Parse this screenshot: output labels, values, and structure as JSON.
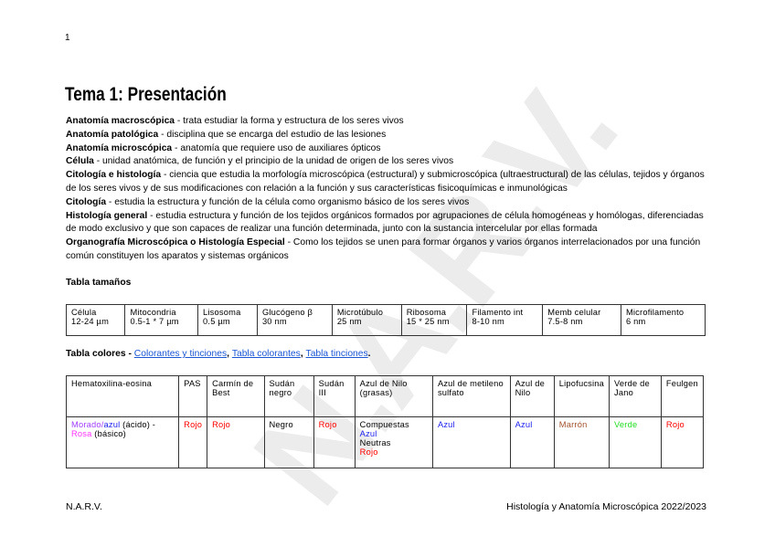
{
  "page_number": "1",
  "title": "Tema 1: Presentación",
  "definitions": [
    {
      "term": "Anatomía macroscópica",
      "text": " - trata estudiar la forma y estructura de los seres vivos"
    },
    {
      "term": "Anatomía patológica",
      "text": " - disciplina que se encarga del estudio de las lesiones"
    },
    {
      "term": "Anatomía microscópica",
      "text": " - anatomía que requiere uso de auxiliares ópticos"
    },
    {
      "term": "Célula",
      "text": " - unidad anatómica, de función y el principio de la unidad de origen de los seres vivos"
    },
    {
      "term": "Citología e histología",
      "text": " - ciencia que estudia la morfología microscópica (estructural) y submicroscópica (ultraestructural) de las células, tejidos y órganos de los seres vivos y de sus modificaciones con relación a la función y sus características fisicoquímicas e inmunológicas"
    },
    {
      "term": "Citología",
      "text": " - estudia la estructura y función de la célula como organismo básico de los seres vivos"
    },
    {
      "term": "Histología general",
      "text": " - estudia estructura y función de los tejidos orgánicos formados por agrupaciones de célula homogéneas y homólogas, diferenciadas de modo exclusivo y que son capaces de realizar una función determinada, junto con la sustancia intercelular por ellas formada"
    },
    {
      "term": "Organografía Microscópica o Histología Especial",
      "text": " - Como los tejidos se unen para formar órganos y varios órganos interrelacionados por una función común constituyen los aparatos y sistemas orgánicos"
    }
  ],
  "sizes_table": {
    "label": "Tabla tamaños",
    "cells": [
      {
        "name": "Célula",
        "value": "12-24 µm"
      },
      {
        "name": "Mitocondria",
        "value": "0.5-1 * 7 µm"
      },
      {
        "name": "Lisosoma",
        "value": "0.5 µm"
      },
      {
        "name": "Glucógeno β",
        "value": "30 nm"
      },
      {
        "name": "Microtúbulo",
        "value": "25 nm"
      },
      {
        "name": "Ribosoma",
        "value": "15 * 25 nm"
      },
      {
        "name": "Filamento int",
        "value": "8-10 nm"
      },
      {
        "name": "Memb celular",
        "value": "7.5-8 nm"
      },
      {
        "name": "Microfilamento",
        "value": "6 nm"
      }
    ]
  },
  "colors_table": {
    "label": "Tabla colores",
    "sep": " - ",
    "links": [
      "Colorantes y tinciones",
      "Tabla colorantes",
      "Tabla tinciones"
    ],
    "headers": [
      "Hematoxilina-eosina",
      "PAS",
      "Carmín de Best",
      "Sudán negro",
      "Sudán III",
      "Azul de Nilo (grasas)",
      "Azul de metileno sulfato",
      "Azul de Nilo",
      "Lipofucsina",
      "Verde de Jano",
      "Feulgen"
    ],
    "he": {
      "morado": "Morado",
      "slash": "/",
      "azul": "azul",
      "acido": " (ácido) - ",
      "rosa": "Rosa",
      "basico": " (básico)"
    },
    "nilo_grasas": {
      "compuestas": "Compuestas ",
      "azul": "Azul",
      "neutras": "Neutras",
      "rojo": "Rojo"
    },
    "values": [
      "Rojo",
      "Rojo",
      "Negro",
      "Rojo",
      "Azul",
      "Azul",
      "Marrón",
      "Verde",
      "Rojo"
    ],
    "colors": {
      "morado": "#a040ff",
      "azul": "#2222ee",
      "rosa": "#ff33ff",
      "rojo": "#ff0000",
      "negro": "#000000",
      "marron": "#a0522d",
      "verde": "#22dd22",
      "link": "#1a55d4"
    }
  },
  "footer": {
    "left": "N.A.R.V.",
    "right": "Histología y Anatomía Microscópica 2022/2023"
  },
  "watermark": "N.A.R.V."
}
